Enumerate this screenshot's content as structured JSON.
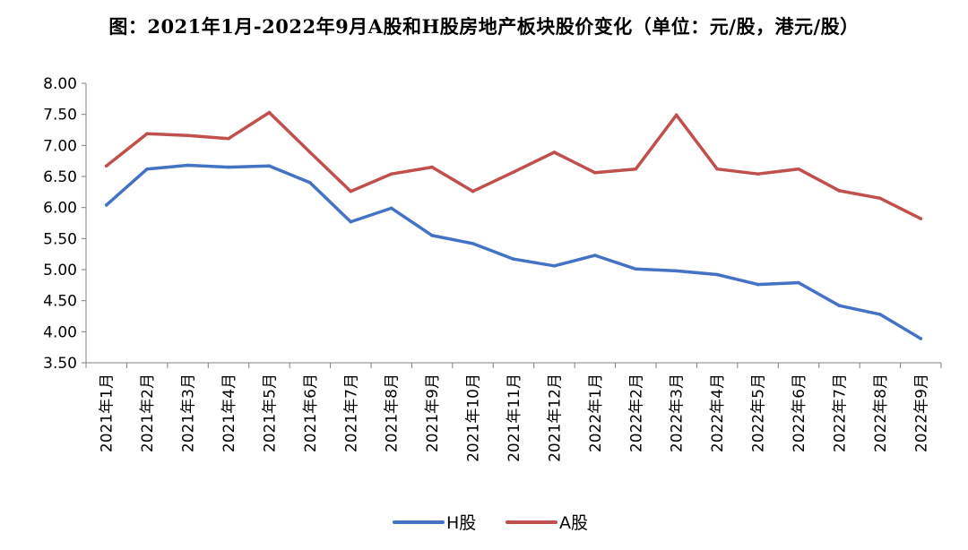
{
  "chart_data": {
    "type": "line",
    "title": "图：2021年1月-2022年9月A股和H股房地产板块股价变化（单位：元/股，港元/股）",
    "categories": [
      "2021年1月",
      "2021年2月",
      "2021年3月",
      "2021年4月",
      "2021年5月",
      "2021年6月",
      "2021年7月",
      "2021年8月",
      "2021年9月",
      "2021年10月",
      "2021年11月",
      "2021年12月",
      "2022年1月",
      "2022年2月",
      "2022年3月",
      "2022年4月",
      "2022年5月",
      "2022年6月",
      "2022年7月",
      "2022年8月",
      "2022年9月"
    ],
    "ylim": [
      3.5,
      8.0
    ],
    "yticks": [
      "8.00",
      "7.50",
      "7.00",
      "6.50",
      "6.00",
      "5.50",
      "5.00",
      "4.50",
      "4.00",
      "3.50"
    ],
    "ytick_values": [
      8.0,
      7.5,
      7.0,
      6.5,
      6.0,
      5.5,
      5.0,
      4.5,
      4.0,
      3.5
    ],
    "xlabel": "",
    "ylabel": "",
    "legend_position": "bottom",
    "series": [
      {
        "name": "H股",
        "color": "#4472C4",
        "values": [
          6.04,
          6.62,
          6.68,
          6.65,
          6.67,
          6.4,
          5.77,
          5.99,
          5.55,
          5.42,
          5.17,
          5.06,
          5.23,
          5.01,
          4.98,
          4.92,
          4.76,
          4.79,
          4.42,
          4.28,
          3.89
        ]
      },
      {
        "name": "A股",
        "color": "#C0504D",
        "values": [
          6.67,
          7.19,
          7.16,
          7.11,
          7.53,
          6.89,
          6.26,
          6.54,
          6.65,
          6.26,
          6.57,
          6.89,
          6.56,
          6.62,
          7.49,
          6.62,
          6.54,
          6.62,
          6.27,
          6.15,
          5.82
        ]
      }
    ]
  }
}
